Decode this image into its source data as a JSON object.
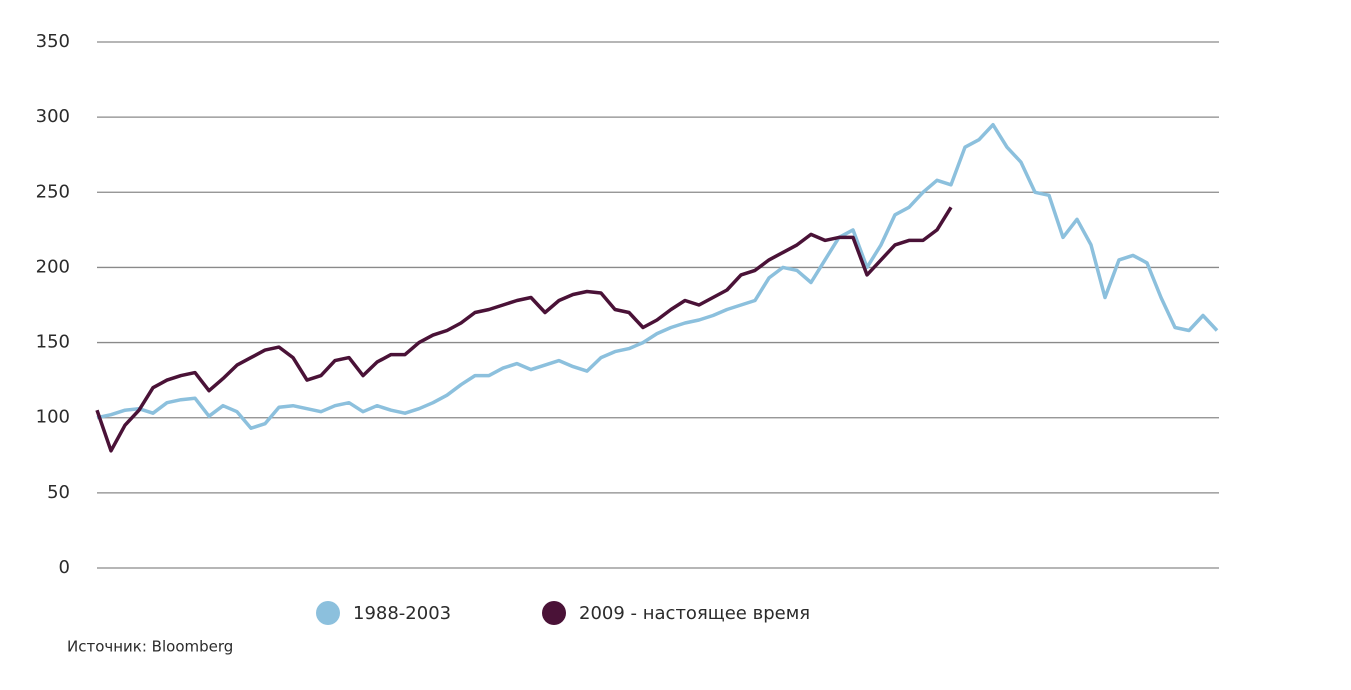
{
  "chart_data": {
    "type": "line",
    "source": "Источник: Bloomberg",
    "ylim": [
      0,
      350
    ],
    "yticks": [
      0,
      50,
      100,
      150,
      200,
      250,
      300,
      350
    ],
    "grid": true,
    "series": [
      {
        "name": "1988-2003",
        "color": "#8cc0dd",
        "values": [
          100,
          102,
          105,
          106,
          103,
          110,
          112,
          113,
          101,
          108,
          104,
          93,
          96,
          107,
          108,
          106,
          104,
          108,
          110,
          104,
          108,
          105,
          103,
          106,
          110,
          115,
          122,
          128,
          128,
          133,
          136,
          132,
          135,
          138,
          134,
          131,
          140,
          144,
          146,
          150,
          156,
          160,
          163,
          165,
          168,
          172,
          175,
          178,
          193,
          200,
          198,
          190,
          205,
          220,
          225,
          200,
          215,
          235,
          240,
          250,
          258,
          255,
          280,
          285,
          295,
          280,
          270,
          250,
          248,
          220,
          232,
          215,
          180,
          205,
          208,
          203,
          180,
          160,
          158,
          168,
          158
        ]
      },
      {
        "name": "2009 - настоящее время",
        "color": "#4a1237",
        "values": [
          105,
          78,
          95,
          105,
          120,
          125,
          128,
          130,
          118,
          126,
          135,
          140,
          145,
          147,
          140,
          125,
          128,
          138,
          140,
          128,
          137,
          142,
          142,
          150,
          155,
          158,
          163,
          170,
          172,
          175,
          178,
          180,
          170,
          178,
          182,
          184,
          183,
          172,
          170,
          160,
          165,
          172,
          178,
          175,
          180,
          185,
          195,
          198,
          205,
          210,
          215,
          222,
          218,
          220,
          220,
          195,
          205,
          215,
          218,
          218,
          225,
          240
        ]
      }
    ]
  }
}
